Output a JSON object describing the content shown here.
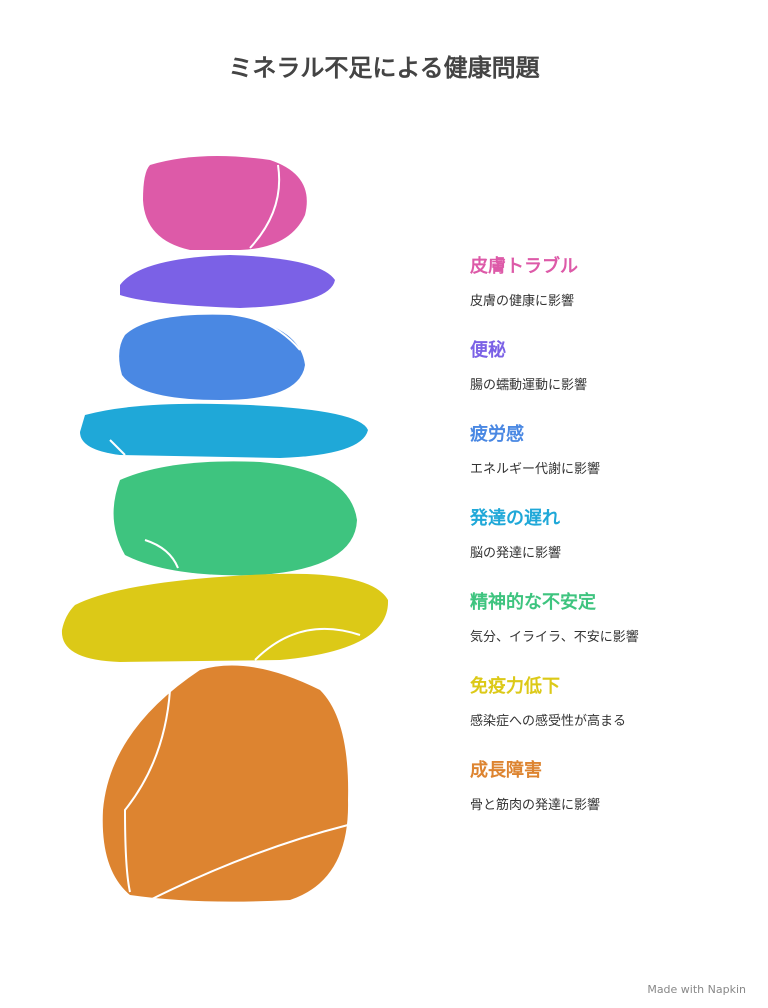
{
  "title": "ミネラル不足による健康問題",
  "items": [
    {
      "heading": "皮膚トラブル",
      "desc": "皮膚の健康に影響",
      "color": "#dd5aa8"
    },
    {
      "heading": "便秘",
      "desc": "腸の蠕動運動に影響",
      "color": "#7b61e6"
    },
    {
      "heading": "疲労感",
      "desc": "エネルギー代謝に影響",
      "color": "#4a88e3"
    },
    {
      "heading": "発達の遅れ",
      "desc": "脳の発達に影響",
      "color": "#1fa8d8"
    },
    {
      "heading": "精神的な不安定",
      "desc": "気分、イライラ、不安に影響",
      "color": "#3ec47f"
    },
    {
      "heading": "免疫力低下",
      "desc": "感染症への感受性が高まる",
      "color": "#dcc917"
    },
    {
      "heading": "成長障害",
      "desc": "骨と筋肉の発達に影響",
      "color": "#dd8430"
    }
  ],
  "footer": "Made with Napkin"
}
